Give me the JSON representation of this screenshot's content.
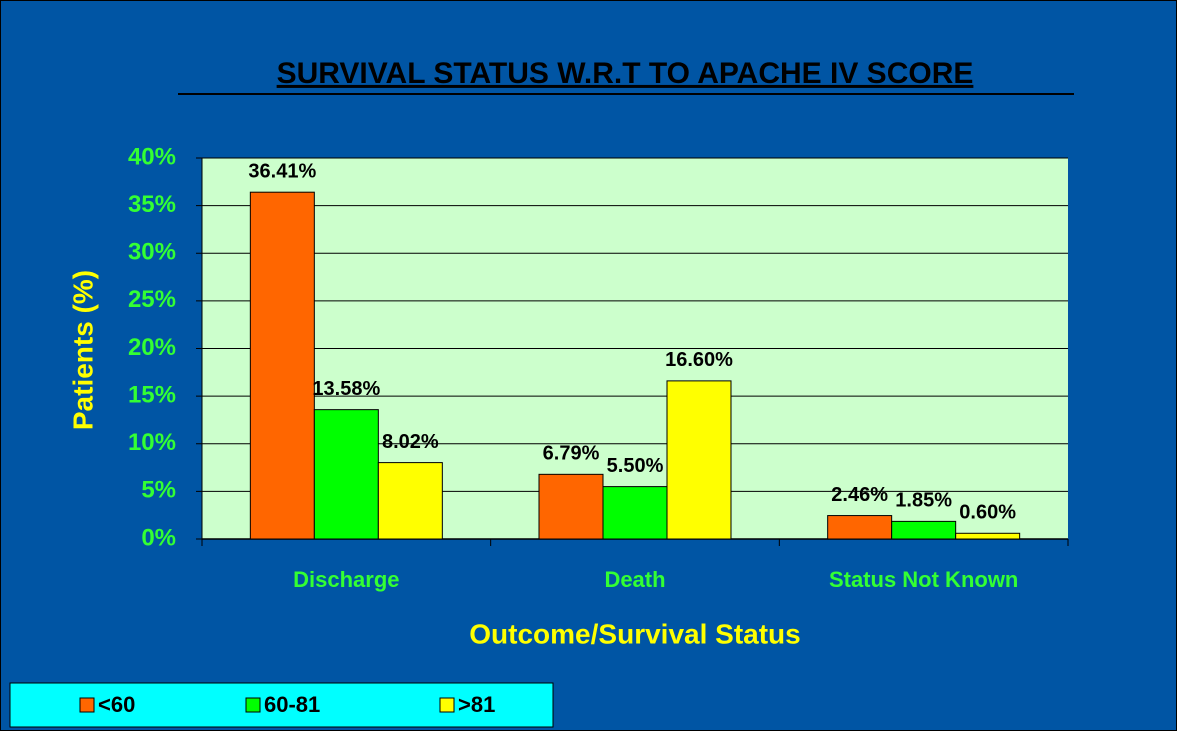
{
  "chart_data": {
    "type": "bar",
    "title": "SURVIVAL STATUS W.R.T TO APACHE IV SCORE",
    "x_label": "Outcome/Survival Status",
    "y_label": "Patients (%)",
    "categories": [
      "Discharge",
      "Death",
      "Status Not Known"
    ],
    "series": [
      {
        "name": "<60",
        "color": "#ff6600",
        "values": [
          36.41,
          6.79,
          2.46
        ],
        "value_labels": [
          "36.41%",
          "6.79%",
          "2.46%"
        ]
      },
      {
        "name": "60-81",
        "color": "#00ff00",
        "values": [
          13.58,
          5.5,
          1.85
        ],
        "value_labels": [
          "13.58%",
          "5.50%",
          "1.85%"
        ]
      },
      {
        "name": ">81",
        "color": "#ffff00",
        "values": [
          8.02,
          16.6,
          0.6
        ],
        "value_labels": [
          "8.02%",
          "16.60%",
          "0.60%"
        ]
      }
    ],
    "ylim": [
      0,
      40
    ],
    "yticks": [
      {
        "value": 0,
        "label": "0%"
      },
      {
        "value": 5,
        "label": "5%"
      },
      {
        "value": 10,
        "label": "10%"
      },
      {
        "value": 15,
        "label": "15%"
      },
      {
        "value": 20,
        "label": "20%"
      },
      {
        "value": 25,
        "label": "25%"
      },
      {
        "value": 30,
        "label": "30%"
      },
      {
        "value": 35,
        "label": "35%"
      },
      {
        "value": 40,
        "label": "40%"
      }
    ],
    "grid": true,
    "legend": "bottom-left"
  }
}
